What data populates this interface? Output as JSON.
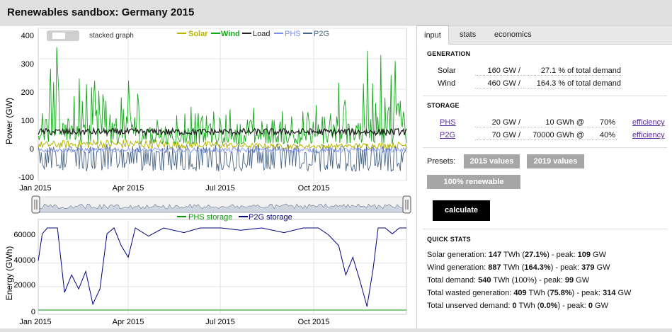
{
  "window": {
    "title": "Renewables sandbox: Germany 2015"
  },
  "colors": {
    "solar": "#b5b500",
    "wind": "#14a81b",
    "load": "#222222",
    "phs": "#7b8ff2",
    "p2g": "#4a6788",
    "phs_storage": "#0a9a0a",
    "p2g_storage": "#00007f"
  },
  "power_chart": {
    "stack_label": "stacked graph",
    "ylabel": "Power (GW)",
    "yticks": [
      "400",
      "300",
      "200",
      "100",
      "0",
      "-100"
    ],
    "legend": [
      {
        "label": "Solar",
        "icon": "line-swatch"
      },
      {
        "label": "Wind",
        "icon": "line-swatch"
      },
      {
        "label": "Load",
        "icon": "line-swatch"
      },
      {
        "label": "PHS",
        "icon": "line-swatch"
      },
      {
        "label": "P2G",
        "icon": "line-swatch"
      }
    ],
    "xticks": [
      "Jan 2015",
      "Apr 2015",
      "Jul 2015",
      "Oct 2015"
    ]
  },
  "energy_chart": {
    "ylabel": "Energy (GWh)",
    "yticks": [
      "60000",
      "40000",
      "20000",
      "0"
    ],
    "legend": [
      {
        "label": "PHS storage",
        "icon": "line-swatch"
      },
      {
        "label": "P2G storage",
        "icon": "line-swatch"
      }
    ],
    "xticks": [
      "Jan 2015",
      "Apr 2015",
      "Jul 2015",
      "Oct 2015"
    ]
  },
  "chart_data": [
    {
      "type": "line",
      "title": "",
      "xlabel": "",
      "ylabel": "Power (GW)",
      "ylim": [
        -100,
        400
      ],
      "x_range": [
        "2015-01-01",
        "2015-12-31"
      ],
      "series": [
        {
          "name": "Solar",
          "summary": "daily cycle, peak ~109 GW"
        },
        {
          "name": "Wind",
          "summary": "high variability, up to ~379 GW, elevated in Jan-Feb and Nov-Dec"
        },
        {
          "name": "Load",
          "summary": "~45-80 GW, peak ~99 GW"
        },
        {
          "name": "PHS",
          "summary": "small charge/discharge around 0"
        },
        {
          "name": "P2G",
          "summary": "between -70 and +20 GW"
        }
      ]
    },
    {
      "type": "line",
      "title": "",
      "xlabel": "",
      "ylabel": "Energy (GWh)",
      "ylim": [
        0,
        70000
      ],
      "x": [
        "2015-01-01",
        "2015-01-05",
        "2015-01-10",
        "2015-01-20",
        "2015-01-27",
        "2015-02-03",
        "2015-02-10",
        "2015-02-17",
        "2015-02-24",
        "2015-03-03",
        "2015-03-10",
        "2015-03-17",
        "2015-03-24",
        "2015-03-31",
        "2015-04-07",
        "2015-04-20",
        "2015-05-05",
        "2015-05-25",
        "2015-06-10",
        "2015-07-01",
        "2015-07-20",
        "2015-08-10",
        "2015-09-01",
        "2015-09-20",
        "2015-10-05",
        "2015-10-15",
        "2015-10-25",
        "2015-11-01",
        "2015-11-08",
        "2015-11-15",
        "2015-11-22",
        "2015-11-28",
        "2015-12-03",
        "2015-12-10",
        "2015-12-17",
        "2015-12-24",
        "2015-12-31"
      ],
      "series": [
        {
          "name": "PHS storage",
          "values": [
            10,
            10,
            10,
            10,
            10,
            10,
            10,
            10,
            10,
            10,
            10,
            10,
            10,
            10,
            10,
            10,
            10,
            10,
            10,
            10,
            10,
            10,
            10,
            10,
            10,
            10,
            10,
            10,
            10,
            10,
            10,
            10,
            10,
            10,
            10,
            10,
            10
          ]
        },
        {
          "name": "P2G storage",
          "values": [
            42000,
            65000,
            70000,
            70000,
            15000,
            30000,
            18000,
            33000,
            5000,
            18000,
            65000,
            70000,
            55000,
            45000,
            70000,
            63000,
            70000,
            66000,
            70000,
            70000,
            68000,
            70000,
            66000,
            70000,
            70000,
            64000,
            55000,
            30000,
            45000,
            25000,
            3000,
            35000,
            70000,
            70000,
            65000,
            70000,
            70000
          ]
        }
      ]
    }
  ],
  "tabs": [
    {
      "label": "input",
      "active": true
    },
    {
      "label": "stats",
      "active": false
    },
    {
      "label": "economics",
      "active": false
    }
  ],
  "generation": {
    "title": "GENERATION",
    "solar": {
      "label": "Solar",
      "gw": "160 GW /",
      "pct": "27.1 % of total demand"
    },
    "wind": {
      "label": "Wind",
      "gw": "460 GW /",
      "pct": "164.3 % of total demand"
    }
  },
  "storage": {
    "title": "STORAGE",
    "phs": {
      "label": "PHS",
      "gw": "20 GW /",
      "gwh": "10 GWh @",
      "eff": "70%",
      "eff_label": "efficiency"
    },
    "p2g": {
      "label": "P2G",
      "gw": "70 GW /",
      "gwh": "70000 GWh @",
      "eff": "40%",
      "eff_label": "efficiency"
    }
  },
  "presets": {
    "label": "Presets:",
    "btn_2015": "2015 values",
    "btn_2019": "2019 values",
    "btn_100": "100% renewable scenario"
  },
  "calculate_label": "calculate",
  "quick_stats": {
    "title": "QUICK STATS",
    "rows": [
      {
        "a": "Solar generation: ",
        "v1": "147",
        "b": " TWh (",
        "v2": "27.1%",
        "c": ") - peak: ",
        "v3": "109",
        "d": " GW"
      },
      {
        "a": "Wind generation: ",
        "v1": "887",
        "b": " TWh (",
        "v2": "164.3%",
        "c": ") - peak: ",
        "v3": "379",
        "d": " GW"
      },
      {
        "a": "Total demand: ",
        "v1": "540",
        "b": " TWh (100%) - peak: ",
        "v2": "",
        "c": "",
        "v3": "99",
        "d": " GW"
      },
      {
        "a": "Total wasted generation: ",
        "v1": "409",
        "b": " TWh (",
        "v2": "75.8%",
        "c": ") - peak: ",
        "v3": "314",
        "d": " GW"
      },
      {
        "a": "Total unserved demand: ",
        "v1": "0",
        "b": " TWh (",
        "v2": "0.0%",
        "c": ") - peak: ",
        "v3": "0",
        "d": " GW"
      }
    ]
  }
}
